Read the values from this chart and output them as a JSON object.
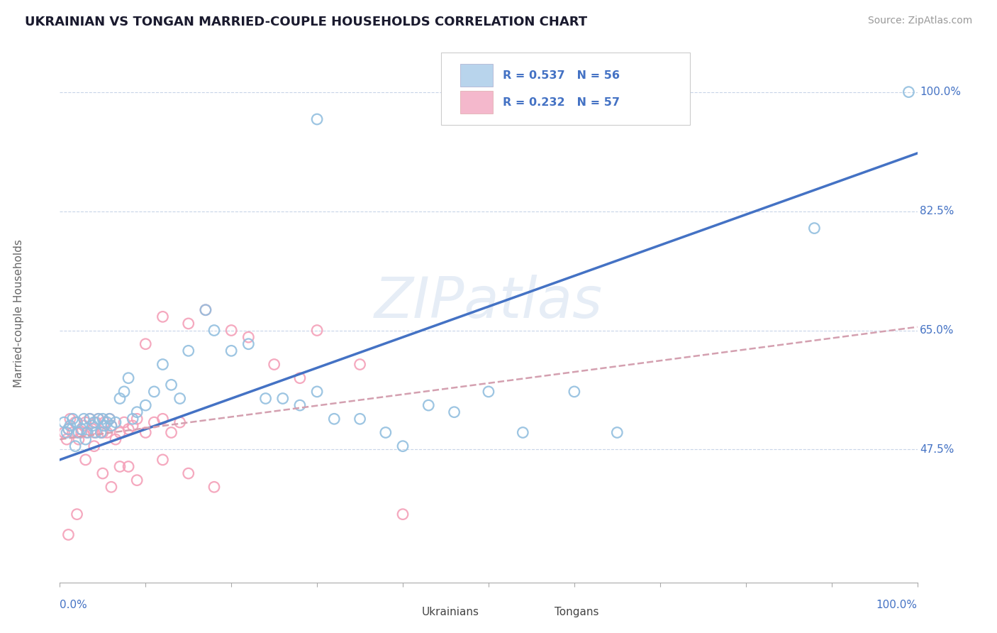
{
  "title": "UKRAINIAN VS TONGAN MARRIED-COUPLE HOUSEHOLDS CORRELATION CHART",
  "source": "Source: ZipAtlas.com",
  "ylabel": "Married-couple Households",
  "watermark": "ZIPatlas",
  "blue_scatter_color": "#92bfdf",
  "pink_scatter_color": "#f4a0b8",
  "blue_line_color": "#4472c4",
  "pink_line_color": "#d4a0b0",
  "legend_blue_fill": "#b8d4ec",
  "legend_pink_fill": "#f4b8cc",
  "title_color": "#1a1a2e",
  "axis_label_color": "#4472c4",
  "grid_color": "#c8d4e8",
  "ytick_vals": [
    0.475,
    0.65,
    0.825,
    1.0
  ],
  "ytick_labels": [
    "47.5%",
    "65.0%",
    "82.5%",
    "100.0%"
  ],
  "xlim": [
    0.0,
    1.0
  ],
  "ylim": [
    0.28,
    1.07
  ],
  "blue_line_x0": 0.0,
  "blue_line_y0": 0.46,
  "blue_line_x1": 1.0,
  "blue_line_y1": 0.91,
  "pink_line_x0": 0.0,
  "pink_line_y0": 0.49,
  "pink_line_x1": 1.0,
  "pink_line_y1": 0.655,
  "ukr_x": [
    0.005,
    0.008,
    0.01,
    0.012,
    0.015,
    0.018,
    0.02,
    0.022,
    0.025,
    0.028,
    0.03,
    0.032,
    0.035,
    0.038,
    0.04,
    0.042,
    0.045,
    0.048,
    0.05,
    0.052,
    0.055,
    0.058,
    0.06,
    0.065,
    0.07,
    0.075,
    0.08,
    0.085,
    0.09,
    0.1,
    0.11,
    0.12,
    0.13,
    0.14,
    0.15,
    0.17,
    0.18,
    0.2,
    0.22,
    0.24,
    0.26,
    0.28,
    0.3,
    0.32,
    0.35,
    0.38,
    0.4,
    0.43,
    0.46,
    0.5,
    0.54,
    0.6,
    0.65,
    0.88,
    0.3,
    0.99
  ],
  "ukr_y": [
    0.515,
    0.5,
    0.505,
    0.51,
    0.52,
    0.48,
    0.515,
    0.5,
    0.505,
    0.52,
    0.49,
    0.5,
    0.52,
    0.51,
    0.515,
    0.5,
    0.52,
    0.5,
    0.52,
    0.51,
    0.515,
    0.52,
    0.51,
    0.515,
    0.55,
    0.56,
    0.58,
    0.52,
    0.53,
    0.54,
    0.56,
    0.6,
    0.57,
    0.55,
    0.62,
    0.68,
    0.65,
    0.62,
    0.63,
    0.55,
    0.55,
    0.54,
    0.56,
    0.52,
    0.52,
    0.5,
    0.48,
    0.54,
    0.53,
    0.56,
    0.5,
    0.56,
    0.5,
    0.8,
    0.96,
    1.0
  ],
  "ton_x": [
    0.005,
    0.008,
    0.01,
    0.012,
    0.015,
    0.018,
    0.02,
    0.022,
    0.025,
    0.028,
    0.03,
    0.032,
    0.035,
    0.038,
    0.04,
    0.042,
    0.045,
    0.048,
    0.05,
    0.052,
    0.055,
    0.058,
    0.06,
    0.065,
    0.07,
    0.075,
    0.08,
    0.085,
    0.09,
    0.1,
    0.11,
    0.12,
    0.13,
    0.14,
    0.1,
    0.12,
    0.15,
    0.17,
    0.2,
    0.22,
    0.25,
    0.28,
    0.3,
    0.35,
    0.4,
    0.12,
    0.15,
    0.18,
    0.08,
    0.09,
    0.06,
    0.07,
    0.04,
    0.05,
    0.03,
    0.02,
    0.01
  ],
  "ton_y": [
    0.5,
    0.49,
    0.505,
    0.52,
    0.5,
    0.515,
    0.5,
    0.49,
    0.5,
    0.51,
    0.515,
    0.5,
    0.52,
    0.505,
    0.5,
    0.515,
    0.52,
    0.5,
    0.5,
    0.515,
    0.5,
    0.52,
    0.51,
    0.49,
    0.5,
    0.515,
    0.505,
    0.51,
    0.52,
    0.5,
    0.515,
    0.52,
    0.5,
    0.515,
    0.63,
    0.67,
    0.66,
    0.68,
    0.65,
    0.64,
    0.6,
    0.58,
    0.65,
    0.6,
    0.38,
    0.46,
    0.44,
    0.42,
    0.45,
    0.43,
    0.42,
    0.45,
    0.48,
    0.44,
    0.46,
    0.38,
    0.35
  ]
}
